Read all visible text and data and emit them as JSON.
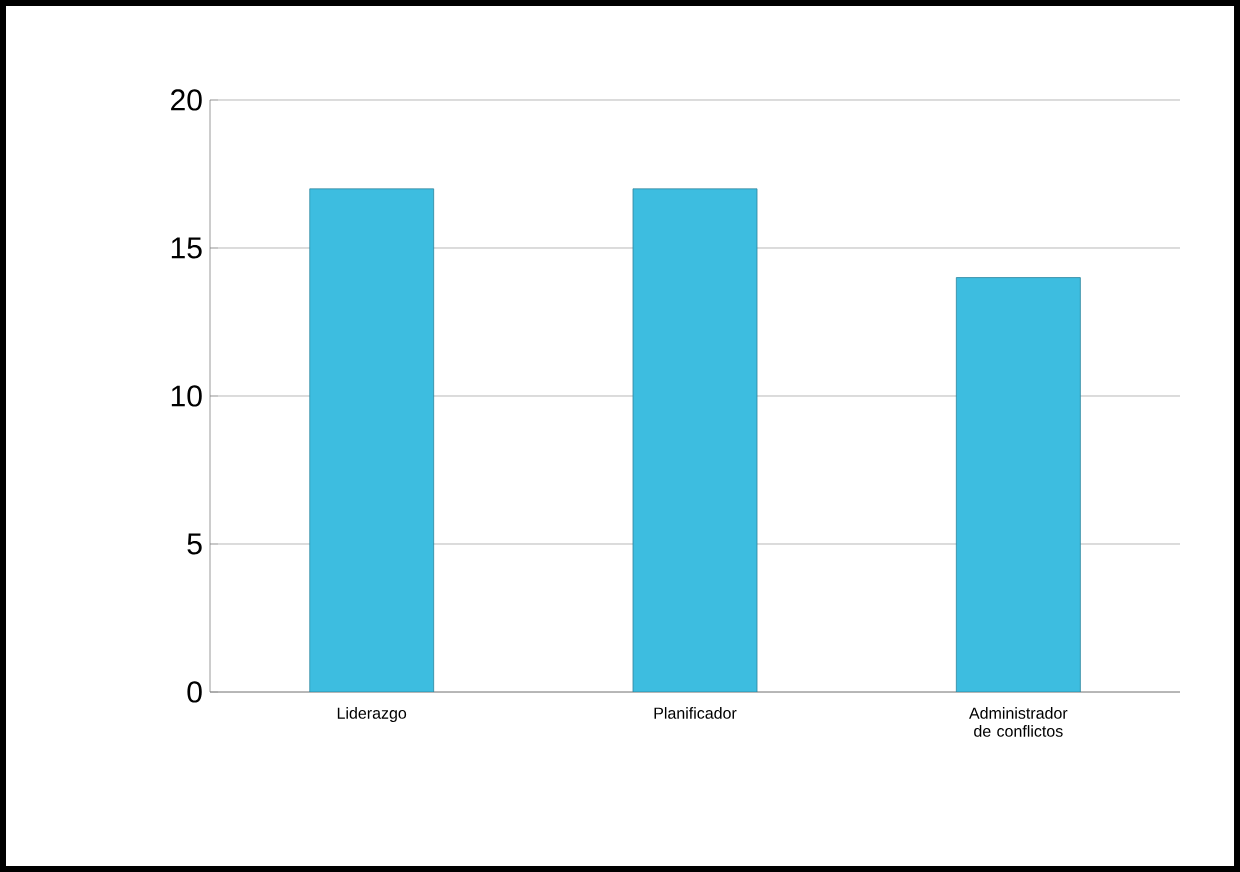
{
  "chart_data": {
    "type": "bar",
    "categories": [
      "Liderazgo",
      "Planificador",
      "Administrador de conflictos"
    ],
    "values": [
      17,
      17,
      14
    ],
    "color": "#3dbde0",
    "ylim": [
      0,
      20
    ],
    "yticks": [
      0,
      5,
      10,
      15,
      20
    ],
    "grid": "y"
  }
}
